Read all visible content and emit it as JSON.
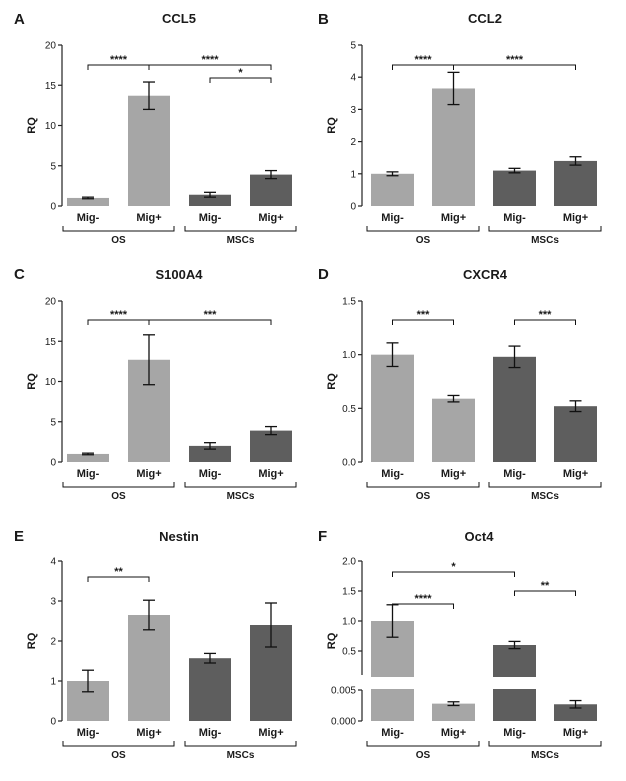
{
  "colors": {
    "light_bar": "#a6a6a6",
    "dark_bar": "#5e5e5e"
  },
  "chart_data": [
    {
      "panel": "A",
      "title": "CCL5",
      "type": "bar",
      "ylabel": "RQ",
      "categories": [
        "Mig-",
        "Mig+",
        "Mig-",
        "Mig+"
      ],
      "groups": [
        {
          "label": "OS",
          "indices": [
            0,
            1
          ]
        },
        {
          "label": "MSCs",
          "indices": [
            2,
            3
          ]
        }
      ],
      "values": [
        1.0,
        13.7,
        1.4,
        3.9
      ],
      "errors": [
        0.1,
        1.7,
        0.3,
        0.5
      ],
      "bar_colors": [
        "light",
        "light",
        "dark",
        "dark"
      ],
      "ylim": [
        0,
        20
      ],
      "yticks": [
        0,
        5,
        10,
        15,
        20
      ],
      "ytick_labels": [
        "0",
        "5",
        "10",
        "15",
        "20"
      ],
      "significance": [
        {
          "from": 0,
          "to": 1,
          "label": "****"
        },
        {
          "from": 1,
          "to": 3,
          "label": "****"
        },
        {
          "from": 2,
          "to": 3,
          "label": "*"
        }
      ]
    },
    {
      "panel": "B",
      "title": "CCL2",
      "type": "bar",
      "ylabel": "RQ",
      "categories": [
        "Mig-",
        "Mig+",
        "Mig-",
        "Mig+"
      ],
      "groups": [
        {
          "label": "OS",
          "indices": [
            0,
            1
          ]
        },
        {
          "label": "MSCs",
          "indices": [
            2,
            3
          ]
        }
      ],
      "values": [
        1.0,
        3.65,
        1.1,
        1.4
      ],
      "errors": [
        0.06,
        0.5,
        0.07,
        0.13
      ],
      "bar_colors": [
        "light",
        "light",
        "dark",
        "dark"
      ],
      "ylim": [
        0,
        5
      ],
      "yticks": [
        0,
        1,
        2,
        3,
        4,
        5
      ],
      "ytick_labels": [
        "0",
        "1",
        "2",
        "3",
        "4",
        "5"
      ],
      "significance": [
        {
          "from": 0,
          "to": 1,
          "label": "****"
        },
        {
          "from": 1,
          "to": 3,
          "label": "****"
        }
      ]
    },
    {
      "panel": "C",
      "title": "S100A4",
      "type": "bar",
      "ylabel": "RQ",
      "categories": [
        "Mig-",
        "Mig+",
        "Mig-",
        "Mig+"
      ],
      "groups": [
        {
          "label": "OS",
          "indices": [
            0,
            1
          ]
        },
        {
          "label": "MSCs",
          "indices": [
            2,
            3
          ]
        }
      ],
      "values": [
        1.0,
        12.7,
        2.0,
        3.9
      ],
      "errors": [
        0.1,
        3.1,
        0.4,
        0.5
      ],
      "bar_colors": [
        "light",
        "light",
        "dark",
        "dark"
      ],
      "ylim": [
        0,
        20
      ],
      "yticks": [
        0,
        5,
        10,
        15,
        20
      ],
      "ytick_labels": [
        "0",
        "5",
        "10",
        "15",
        "20"
      ],
      "significance": [
        {
          "from": 0,
          "to": 1,
          "label": "****"
        },
        {
          "from": 1,
          "to": 3,
          "label": "***"
        }
      ]
    },
    {
      "panel": "D",
      "title": "CXCR4",
      "type": "bar",
      "ylabel": "RQ",
      "categories": [
        "Mig-",
        "Mig+",
        "Mig-",
        "Mig+"
      ],
      "groups": [
        {
          "label": "OS",
          "indices": [
            0,
            1
          ]
        },
        {
          "label": "MSCs",
          "indices": [
            2,
            3
          ]
        }
      ],
      "values": [
        1.0,
        0.59,
        0.98,
        0.52
      ],
      "errors": [
        0.11,
        0.03,
        0.1,
        0.05
      ],
      "bar_colors": [
        "light",
        "light",
        "dark",
        "dark"
      ],
      "ylim": [
        0,
        1.5
      ],
      "yticks": [
        0,
        0.5,
        1.0,
        1.5
      ],
      "ytick_labels": [
        "0.0",
        "0.5",
        "1.0",
        "1.5"
      ],
      "significance": [
        {
          "from": 0,
          "to": 1,
          "label": "***"
        },
        {
          "from": 2,
          "to": 3,
          "label": "***"
        }
      ]
    },
    {
      "panel": "E",
      "title": "Nestin",
      "type": "bar",
      "ylabel": "RQ",
      "categories": [
        "Mig-",
        "Mig+",
        "Mig-",
        "Mig+"
      ],
      "groups": [
        {
          "label": "OS",
          "indices": [
            0,
            1
          ]
        },
        {
          "label": "MSCs",
          "indices": [
            2,
            3
          ]
        }
      ],
      "values": [
        1.0,
        2.65,
        1.57,
        2.4
      ],
      "errors": [
        0.27,
        0.37,
        0.12,
        0.55
      ],
      "bar_colors": [
        "light",
        "light",
        "dark",
        "dark"
      ],
      "ylim": [
        0,
        4
      ],
      "yticks": [
        0,
        1,
        2,
        3,
        4
      ],
      "ytick_labels": [
        "0",
        "1",
        "2",
        "3",
        "4"
      ],
      "significance": [
        {
          "from": 0,
          "to": 1,
          "label": "**"
        }
      ]
    },
    {
      "panel": "F",
      "title": "Oct4",
      "type": "bar",
      "ylabel": "RQ",
      "categories": [
        "Mig-",
        "Mig+",
        "Mig-",
        "Mig+"
      ],
      "groups": [
        {
          "label": "OS",
          "indices": [
            0,
            1
          ]
        },
        {
          "label": "MSCs",
          "indices": [
            2,
            3
          ]
        }
      ],
      "values": [
        1.0,
        0.0028,
        0.6,
        0.0027
      ],
      "errors": [
        0.27,
        0.0003,
        0.06,
        0.0006
      ],
      "bar_colors": [
        "light",
        "light",
        "dark",
        "dark"
      ],
      "ylim": [
        0,
        2.0
      ],
      "broken_axis": true,
      "lower_segment": {
        "ylim": [
          0,
          0.005
        ],
        "yticks": [
          0,
          0.005
        ],
        "ytick_labels": [
          "0.000",
          "0.005"
        ]
      },
      "upper_segment": {
        "ylim": [
          0.1,
          2.0
        ],
        "yticks": [
          0.5,
          1.0,
          1.5,
          2.0
        ],
        "ytick_labels": [
          "0.5",
          "1.0",
          "1.5",
          "2.0"
        ]
      },
      "significance": [
        {
          "from": 0,
          "to": 1,
          "label": "****"
        },
        {
          "from": 0,
          "to": 2,
          "label": "*"
        },
        {
          "from": 2,
          "to": 3,
          "label": "**"
        }
      ]
    }
  ]
}
